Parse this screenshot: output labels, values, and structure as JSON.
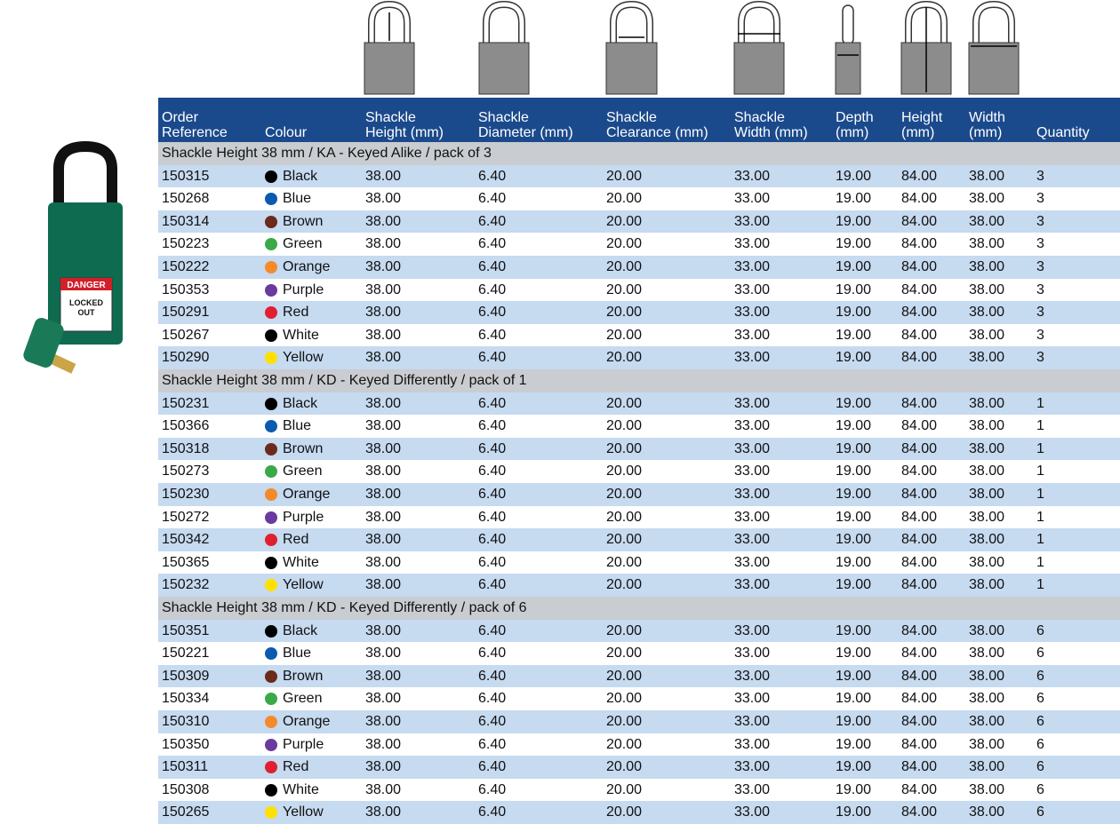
{
  "table": {
    "headers": [
      [
        "Order",
        "Reference"
      ],
      [
        "Colour"
      ],
      [
        "Shackle",
        "Height (mm)"
      ],
      [
        "Shackle",
        "Diameter (mm)"
      ],
      [
        "Shackle",
        "Clearance (mm)"
      ],
      [
        "Shackle",
        "Width (mm)"
      ],
      [
        "Depth",
        "(mm)"
      ],
      [
        "Height",
        "(mm)"
      ],
      [
        "Width",
        "(mm)"
      ],
      [
        "Quantity"
      ]
    ],
    "swatches": {
      "Black": "#000000",
      "Blue": "#0a5bb0",
      "Brown": "#6b2a1a",
      "Green": "#3aaa48",
      "Orange": "#f58a2a",
      "Purple": "#6b3a9e",
      "Red": "#e02030",
      "White": "#000000",
      "Yellow": "#ffe000"
    },
    "groups": [
      {
        "title": "Shackle Height 38 mm / KA - Keyed Alike / pack of 3",
        "rows": [
          [
            "150315",
            "Black",
            "38.00",
            "6.40",
            "20.00",
            "33.00",
            "19.00",
            "84.00",
            "38.00",
            "3"
          ],
          [
            "150268",
            "Blue",
            "38.00",
            "6.40",
            "20.00",
            "33.00",
            "19.00",
            "84.00",
            "38.00",
            "3"
          ],
          [
            "150314",
            "Brown",
            "38.00",
            "6.40",
            "20.00",
            "33.00",
            "19.00",
            "84.00",
            "38.00",
            "3"
          ],
          [
            "150223",
            "Green",
            "38.00",
            "6.40",
            "20.00",
            "33.00",
            "19.00",
            "84.00",
            "38.00",
            "3"
          ],
          [
            "150222",
            "Orange",
            "38.00",
            "6.40",
            "20.00",
            "33.00",
            "19.00",
            "84.00",
            "38.00",
            "3"
          ],
          [
            "150353",
            "Purple",
            "38.00",
            "6.40",
            "20.00",
            "33.00",
            "19.00",
            "84.00",
            "38.00",
            "3"
          ],
          [
            "150291",
            "Red",
            "38.00",
            "6.40",
            "20.00",
            "33.00",
            "19.00",
            "84.00",
            "38.00",
            "3"
          ],
          [
            "150267",
            "White",
            "38.00",
            "6.40",
            "20.00",
            "33.00",
            "19.00",
            "84.00",
            "38.00",
            "3"
          ],
          [
            "150290",
            "Yellow",
            "38.00",
            "6.40",
            "20.00",
            "33.00",
            "19.00",
            "84.00",
            "38.00",
            "3"
          ]
        ]
      },
      {
        "title": "Shackle Height 38 mm / KD - Keyed Differently / pack of 1",
        "rows": [
          [
            "150231",
            "Black",
            "38.00",
            "6.40",
            "20.00",
            "33.00",
            "19.00",
            "84.00",
            "38.00",
            "1"
          ],
          [
            "150366",
            "Blue",
            "38.00",
            "6.40",
            "20.00",
            "33.00",
            "19.00",
            "84.00",
            "38.00",
            "1"
          ],
          [
            "150318",
            "Brown",
            "38.00",
            "6.40",
            "20.00",
            "33.00",
            "19.00",
            "84.00",
            "38.00",
            "1"
          ],
          [
            "150273",
            "Green",
            "38.00",
            "6.40",
            "20.00",
            "33.00",
            "19.00",
            "84.00",
            "38.00",
            "1"
          ],
          [
            "150230",
            "Orange",
            "38.00",
            "6.40",
            "20.00",
            "33.00",
            "19.00",
            "84.00",
            "38.00",
            "1"
          ],
          [
            "150272",
            "Purple",
            "38.00",
            "6.40",
            "20.00",
            "33.00",
            "19.00",
            "84.00",
            "38.00",
            "1"
          ],
          [
            "150342",
            "Red",
            "38.00",
            "6.40",
            "20.00",
            "33.00",
            "19.00",
            "84.00",
            "38.00",
            "1"
          ],
          [
            "150365",
            "White",
            "38.00",
            "6.40",
            "20.00",
            "33.00",
            "19.00",
            "84.00",
            "38.00",
            "1"
          ],
          [
            "150232",
            "Yellow",
            "38.00",
            "6.40",
            "20.00",
            "33.00",
            "19.00",
            "84.00",
            "38.00",
            "1"
          ]
        ]
      },
      {
        "title": "Shackle Height 38 mm / KD - Keyed Differently / pack of 6",
        "rows": [
          [
            "150351",
            "Black",
            "38.00",
            "6.40",
            "20.00",
            "33.00",
            "19.00",
            "84.00",
            "38.00",
            "6"
          ],
          [
            "150221",
            "Blue",
            "38.00",
            "6.40",
            "20.00",
            "33.00",
            "19.00",
            "84.00",
            "38.00",
            "6"
          ],
          [
            "150309",
            "Brown",
            "38.00",
            "6.40",
            "20.00",
            "33.00",
            "19.00",
            "84.00",
            "38.00",
            "6"
          ],
          [
            "150334",
            "Green",
            "38.00",
            "6.40",
            "20.00",
            "33.00",
            "19.00",
            "84.00",
            "38.00",
            "6"
          ],
          [
            "150310",
            "Orange",
            "38.00",
            "6.40",
            "20.00",
            "33.00",
            "19.00",
            "84.00",
            "38.00",
            "6"
          ],
          [
            "150350",
            "Purple",
            "38.00",
            "6.40",
            "20.00",
            "33.00",
            "19.00",
            "84.00",
            "38.00",
            "6"
          ],
          [
            "150311",
            "Red",
            "38.00",
            "6.40",
            "20.00",
            "33.00",
            "19.00",
            "84.00",
            "38.00",
            "6"
          ],
          [
            "150308",
            "White",
            "38.00",
            "6.40",
            "20.00",
            "33.00",
            "19.00",
            "84.00",
            "38.00",
            "6"
          ],
          [
            "150265",
            "Yellow",
            "38.00",
            "6.40",
            "20.00",
            "33.00",
            "19.00",
            "84.00",
            "38.00",
            "6"
          ]
        ]
      }
    ]
  },
  "image": {
    "sign": [
      "DANGER",
      "LOCKED",
      "OUT"
    ]
  }
}
